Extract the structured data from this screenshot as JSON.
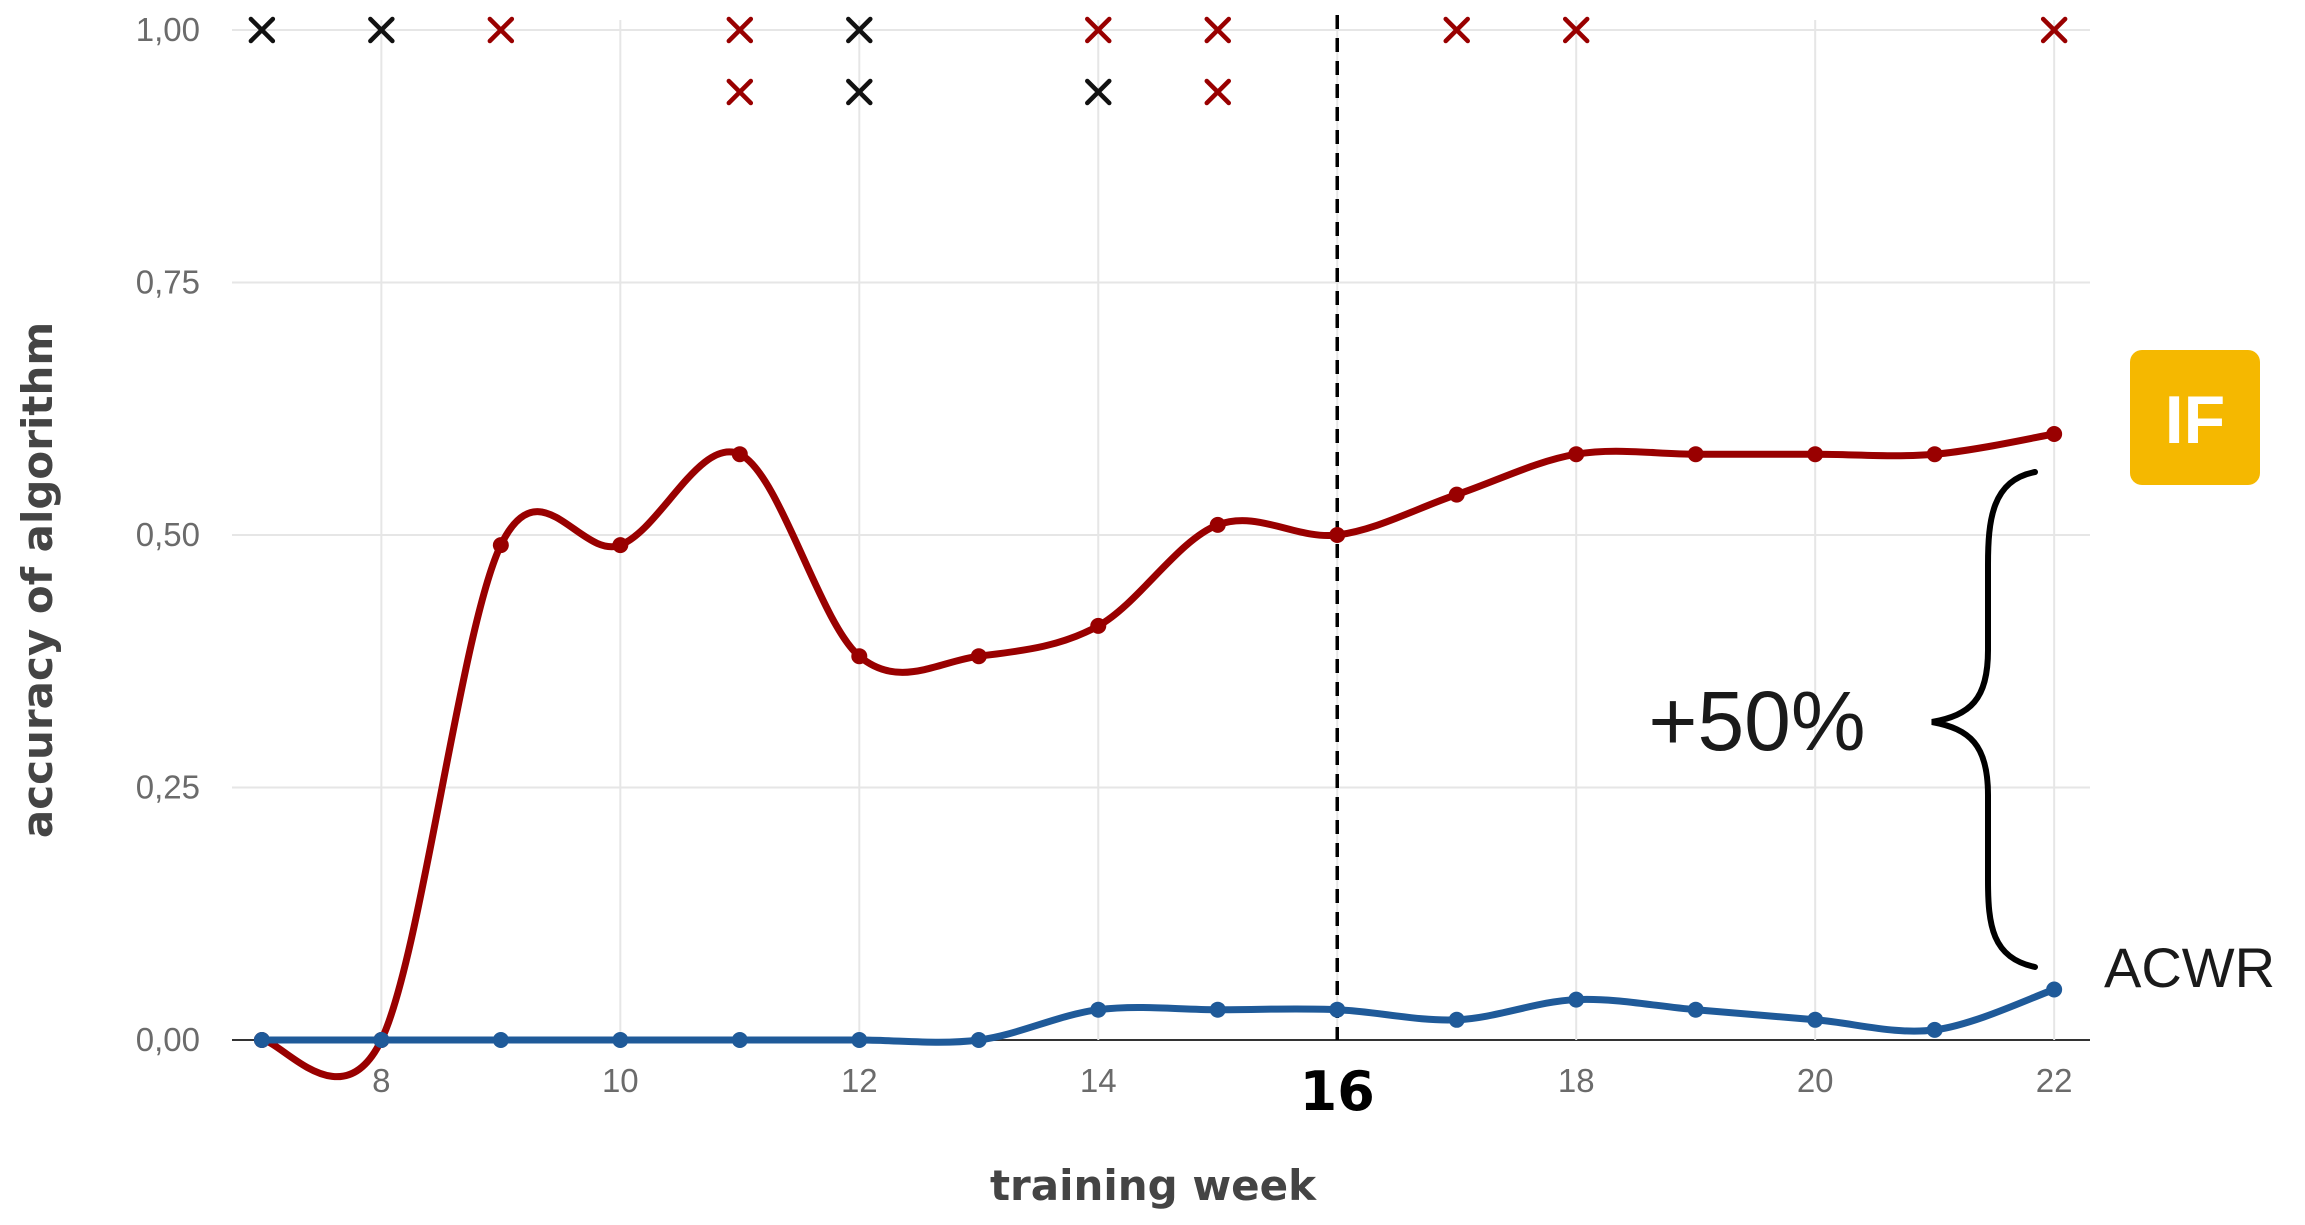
{
  "chart_data": {
    "type": "line",
    "xlabel": "training week",
    "ylabel": "accuracy of algorithm",
    "xlim": [
      6.75,
      22.3
    ],
    "ylim": [
      0,
      1
    ],
    "x_ticks": [
      8,
      10,
      12,
      14,
      16,
      18,
      20,
      22
    ],
    "x_tick_labels": [
      "8",
      "10",
      "12",
      "14",
      "16",
      "18",
      "20",
      "22"
    ],
    "highlight_x": 16,
    "y_ticks": [
      0,
      0.25,
      0.5,
      0.75,
      1.0
    ],
    "y_tick_labels": [
      "0,00",
      "0,25",
      "0,50",
      "0,75",
      "1,00"
    ],
    "grid": true,
    "series": [
      {
        "name": "IF",
        "color": "#990000",
        "x": [
          7,
          8,
          9,
          10,
          11,
          12,
          13,
          14,
          15,
          16,
          17,
          18,
          19,
          20,
          21,
          22
        ],
        "values": [
          0,
          0,
          0.49,
          0.49,
          0.58,
          0.38,
          0.38,
          0.41,
          0.51,
          0.5,
          0.54,
          0.58,
          0.58,
          0.58,
          0.58,
          0.6
        ]
      },
      {
        "name": "ACWR",
        "color": "#1f5a99",
        "x": [
          7,
          8,
          9,
          10,
          11,
          12,
          13,
          14,
          15,
          16,
          17,
          18,
          19,
          20,
          21,
          22
        ],
        "values": [
          0,
          0,
          0,
          0,
          0,
          0,
          0,
          0.03,
          0.03,
          0.03,
          0.02,
          0.04,
          0.03,
          0.02,
          0.01,
          0.05
        ]
      }
    ],
    "markers": [
      {
        "x": 7,
        "row": 1,
        "color": "#111111"
      },
      {
        "x": 8,
        "row": 1,
        "color": "#111111"
      },
      {
        "x": 9,
        "row": 1,
        "color": "#990000"
      },
      {
        "x": 11,
        "row": 1,
        "color": "#990000"
      },
      {
        "x": 11,
        "row": 2,
        "color": "#990000"
      },
      {
        "x": 12,
        "row": 1,
        "color": "#111111"
      },
      {
        "x": 12,
        "row": 2,
        "color": "#111111"
      },
      {
        "x": 14,
        "row": 1,
        "color": "#990000"
      },
      {
        "x": 14,
        "row": 2,
        "color": "#111111"
      },
      {
        "x": 15,
        "row": 1,
        "color": "#990000"
      },
      {
        "x": 15,
        "row": 2,
        "color": "#990000"
      },
      {
        "x": 17,
        "row": 1,
        "color": "#990000"
      },
      {
        "x": 18,
        "row": 1,
        "color": "#990000"
      },
      {
        "x": 22,
        "row": 1,
        "color": "#990000"
      }
    ],
    "annotations": {
      "gap_label": "+50%",
      "if_badge": "IF",
      "if_badge_color": "#f5b800",
      "acwr_label": "ACWR"
    }
  }
}
